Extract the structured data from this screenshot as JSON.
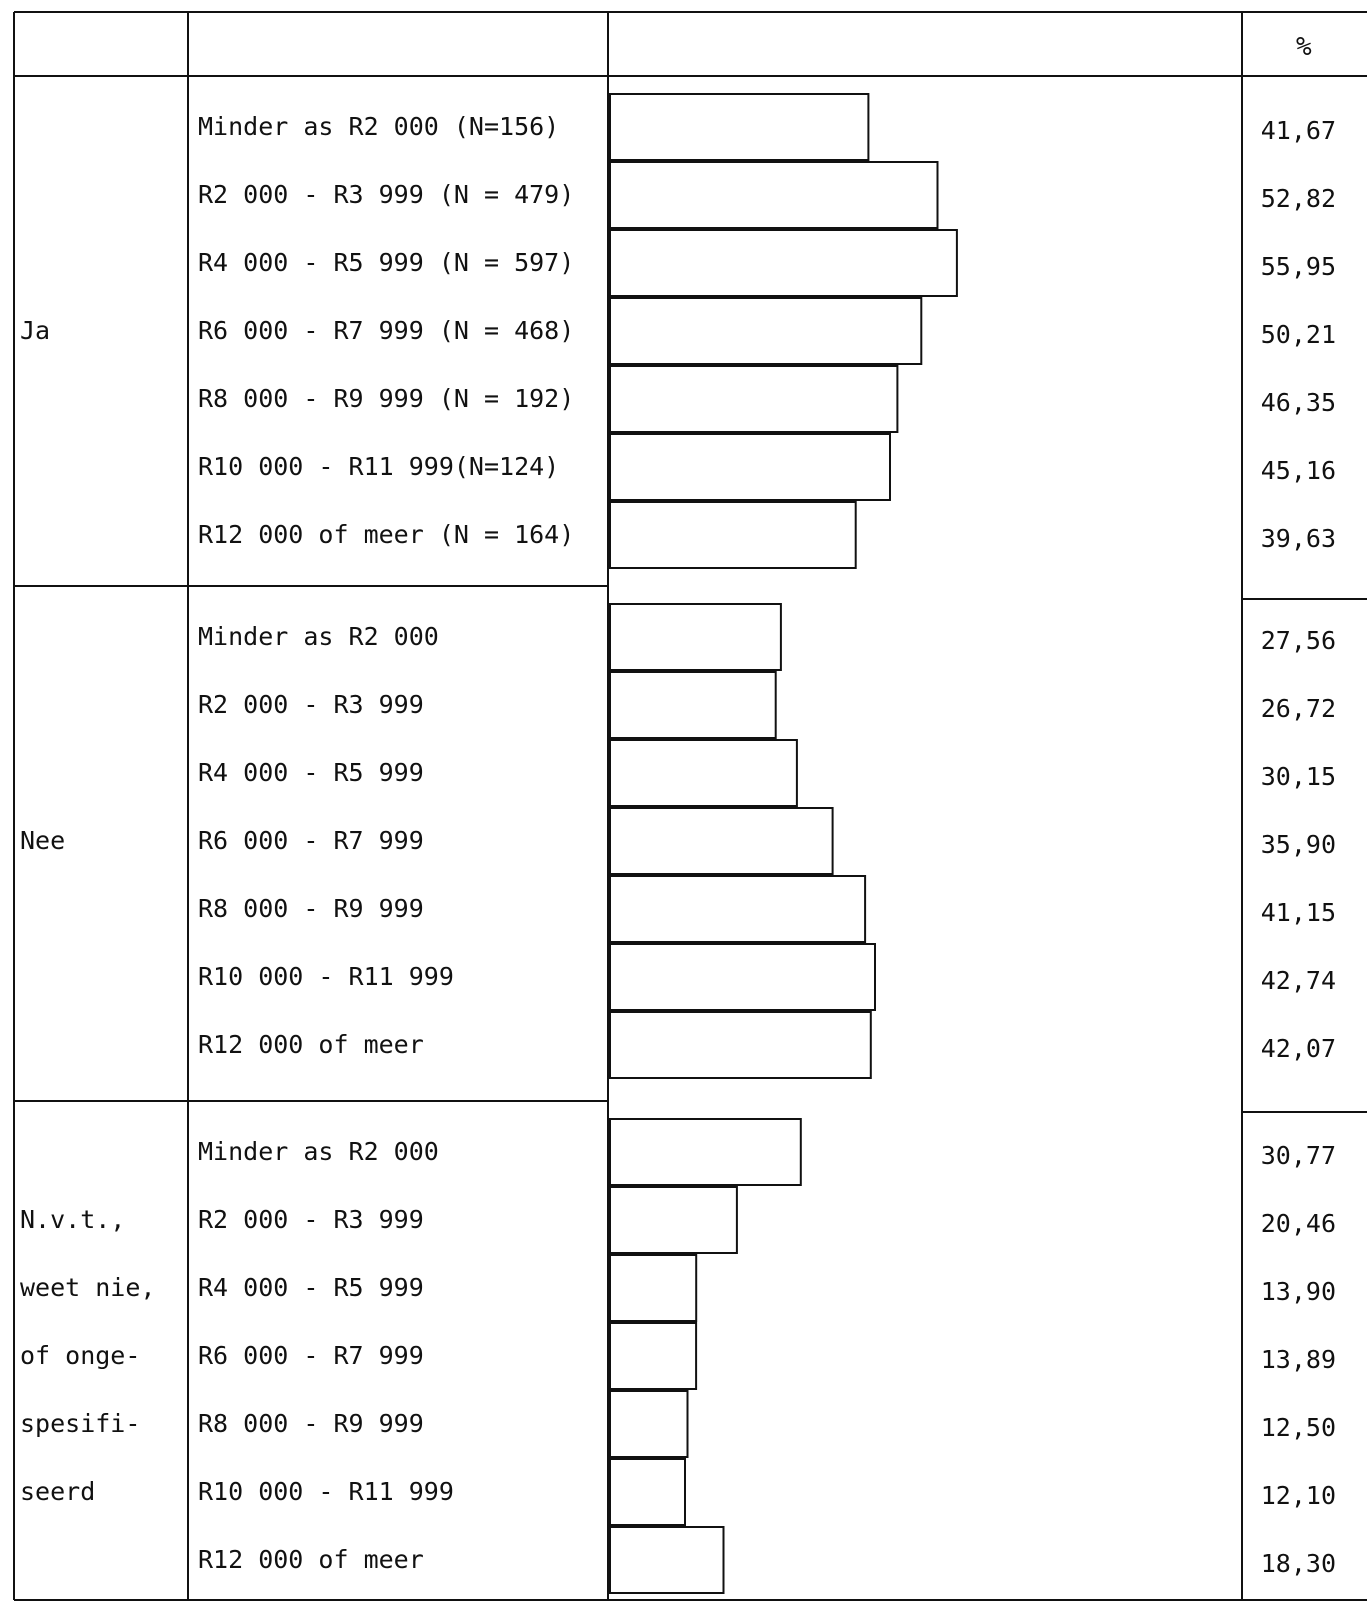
{
  "chart_data": {
    "type": "bar",
    "orientation": "horizontal",
    "value_header": "%",
    "groups": [
      {
        "name": "Ja",
        "name_lines": [
          "Ja"
        ],
        "categories": [
          "Minder as R2 000 (N=156)",
          "R2 000 - R3 999 (N = 479)",
          "R4 000 - R5 999 (N = 597)",
          "R6 000 - R7 999 (N = 468)",
          "R8 000 - R9 999 (N = 192)",
          "R10 000 - R11 999(N=124)",
          "R12 000 of meer (N = 164)"
        ],
        "values": [
          41.67,
          52.82,
          55.95,
          50.21,
          46.35,
          45.16,
          39.63
        ],
        "value_labels": [
          "41,67",
          "52,82",
          "55,95",
          "50,21",
          "46,35",
          "45,16",
          "39,63"
        ]
      },
      {
        "name": "Nee",
        "name_lines": [
          "Nee"
        ],
        "categories": [
          "Minder as R2 000",
          "R2 000 - R3 999",
          "R4 000 - R5 999",
          "R6 000 - R7 999",
          "R8 000 - R9 999",
          "R10 000 - R11 999",
          "R12 000 of meer"
        ],
        "values": [
          27.56,
          26.72,
          30.15,
          35.9,
          41.15,
          42.74,
          42.07
        ],
        "value_labels": [
          "27,56",
          "26,72",
          "30,15",
          "35,90",
          "41,15",
          "42,74",
          "42,07"
        ]
      },
      {
        "name": "N.v.t., weet nie, of onge- spesifi- seerd",
        "name_lines": [
          "N.v.t.,",
          "weet nie,",
          "of onge-",
          "spesifi-",
          "seerd"
        ],
        "categories": [
          "Minder as R2 000",
          "R2 000 - R3 999",
          "R4 000 - R5 999",
          "R6 000 - R7 999",
          "R8 000 - R9 999",
          "R10 000 - R11 999",
          "R12 000 of meer"
        ],
        "values": [
          30.77,
          20.46,
          13.9,
          13.89,
          12.5,
          12.1,
          18.3
        ],
        "value_labels": [
          "30,77",
          "20,46",
          "13,90",
          "13,89",
          "12,50",
          "12,10",
          "18,30"
        ]
      }
    ]
  }
}
